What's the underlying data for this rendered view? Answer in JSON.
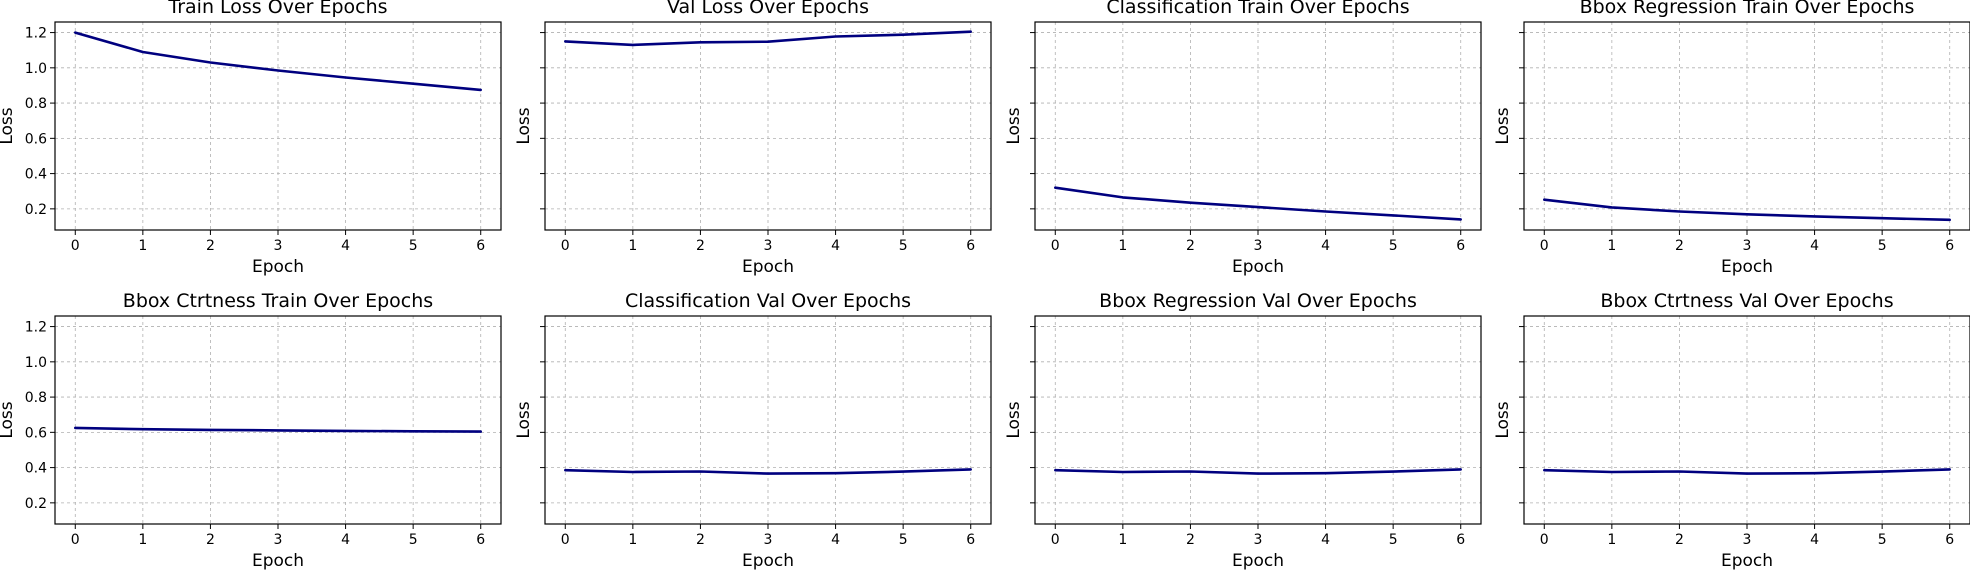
{
  "figure": {
    "line_color": "#00007f",
    "grid": true,
    "shared_y": true
  },
  "chart_data": [
    {
      "type": "line",
      "title": "Train Loss Over Epochs",
      "xlabel": "Epoch",
      "ylabel": "Loss",
      "x": [
        0,
        1,
        2,
        3,
        4,
        5,
        6
      ],
      "y": [
        1.2,
        1.09,
        1.03,
        0.985,
        0.945,
        0.91,
        0.875
      ],
      "xlim": [
        -0.3,
        6.3
      ],
      "ylim": [
        0.08,
        1.26
      ],
      "xticks": [
        "0",
        "1",
        "2",
        "3",
        "4",
        "5",
        "6"
      ],
      "yticks": [
        "0.2",
        "0.4",
        "0.6",
        "0.8",
        "1.0",
        "1.2"
      ],
      "show_yticklabels": true
    },
    {
      "type": "line",
      "title": "Val Loss Over Epochs",
      "xlabel": "Epoch",
      "ylabel": "Loss",
      "x": [
        0,
        1,
        2,
        3,
        4,
        5,
        6
      ],
      "y": [
        1.15,
        1.13,
        1.145,
        1.148,
        1.178,
        1.188,
        1.205
      ],
      "xlim": [
        -0.3,
        6.3
      ],
      "ylim": [
        0.08,
        1.26
      ],
      "xticks": [
        "0",
        "1",
        "2",
        "3",
        "4",
        "5",
        "6"
      ],
      "yticks": [
        "0.2",
        "0.4",
        "0.6",
        "0.8",
        "1.0",
        "1.2"
      ],
      "show_yticklabels": false
    },
    {
      "type": "line",
      "title": "Classification Train Over Epochs",
      "xlabel": "Epoch",
      "ylabel": "Loss",
      "x": [
        0,
        1,
        2,
        3,
        4,
        5,
        6
      ],
      "y": [
        0.32,
        0.265,
        0.235,
        0.21,
        0.185,
        0.163,
        0.14
      ],
      "xlim": [
        -0.3,
        6.3
      ],
      "ylim": [
        0.08,
        1.26
      ],
      "xticks": [
        "0",
        "1",
        "2",
        "3",
        "4",
        "5",
        "6"
      ],
      "yticks": [
        "0.2",
        "0.4",
        "0.6",
        "0.8",
        "1.0",
        "1.2"
      ],
      "show_yticklabels": false
    },
    {
      "type": "line",
      "title": "Bbox Regression Train Over Epochs",
      "xlabel": "Epoch",
      "ylabel": "Loss",
      "x": [
        0,
        1,
        2,
        3,
        4,
        5,
        6
      ],
      "y": [
        0.252,
        0.208,
        0.185,
        0.169,
        0.157,
        0.147,
        0.138
      ],
      "xlim": [
        -0.3,
        6.3
      ],
      "ylim": [
        0.08,
        1.26
      ],
      "xticks": [
        "0",
        "1",
        "2",
        "3",
        "4",
        "5",
        "6"
      ],
      "yticks": [
        "0.2",
        "0.4",
        "0.6",
        "0.8",
        "1.0",
        "1.2"
      ],
      "show_yticklabels": false
    },
    {
      "type": "line",
      "title": "Bbox Ctrtness Train Over Epochs",
      "xlabel": "Epoch",
      "ylabel": "Loss",
      "x": [
        0,
        1,
        2,
        3,
        4,
        5,
        6
      ],
      "y": [
        0.625,
        0.618,
        0.614,
        0.611,
        0.608,
        0.606,
        0.604
      ],
      "xlim": [
        -0.3,
        6.3
      ],
      "ylim": [
        0.08,
        1.26
      ],
      "xticks": [
        "0",
        "1",
        "2",
        "3",
        "4",
        "5",
        "6"
      ],
      "yticks": [
        "0.2",
        "0.4",
        "0.6",
        "0.8",
        "1.0",
        "1.2"
      ],
      "show_yticklabels": true
    },
    {
      "type": "line",
      "title": "Classification Val Over Epochs",
      "xlabel": "Epoch",
      "ylabel": "Loss",
      "x": [
        0,
        1,
        2,
        3,
        4,
        5,
        6
      ],
      "y": [
        0.385,
        0.375,
        0.378,
        0.366,
        0.368,
        0.377,
        0.39
      ],
      "xlim": [
        -0.3,
        6.3
      ],
      "ylim": [
        0.08,
        1.26
      ],
      "xticks": [
        "0",
        "1",
        "2",
        "3",
        "4",
        "5",
        "6"
      ],
      "yticks": [
        "0.2",
        "0.4",
        "0.6",
        "0.8",
        "1.0",
        "1.2"
      ],
      "show_yticklabels": false
    },
    {
      "type": "line",
      "title": "Bbox Regression Val Over Epochs",
      "xlabel": "Epoch",
      "ylabel": "Loss",
      "x": [
        0,
        1,
        2,
        3,
        4,
        5,
        6
      ],
      "y": [
        0.385,
        0.375,
        0.378,
        0.366,
        0.368,
        0.377,
        0.39
      ],
      "xlim": [
        -0.3,
        6.3
      ],
      "ylim": [
        0.08,
        1.26
      ],
      "xticks": [
        "0",
        "1",
        "2",
        "3",
        "4",
        "5",
        "6"
      ],
      "yticks": [
        "0.2",
        "0.4",
        "0.6",
        "0.8",
        "1.0",
        "1.2"
      ],
      "show_yticklabels": false
    },
    {
      "type": "line",
      "title": "Bbox Ctrtness Val Over Epochs",
      "xlabel": "Epoch",
      "ylabel": "Loss",
      "x": [
        0,
        1,
        2,
        3,
        4,
        5,
        6
      ],
      "y": [
        0.385,
        0.375,
        0.378,
        0.366,
        0.368,
        0.377,
        0.39
      ],
      "xlim": [
        -0.3,
        6.3
      ],
      "ylim": [
        0.08,
        1.26
      ],
      "xticks": [
        "0",
        "1",
        "2",
        "3",
        "4",
        "5",
        "6"
      ],
      "yticks": [
        "0.2",
        "0.4",
        "0.6",
        "0.8",
        "1.0",
        "1.2"
      ],
      "show_yticklabels": false
    }
  ]
}
